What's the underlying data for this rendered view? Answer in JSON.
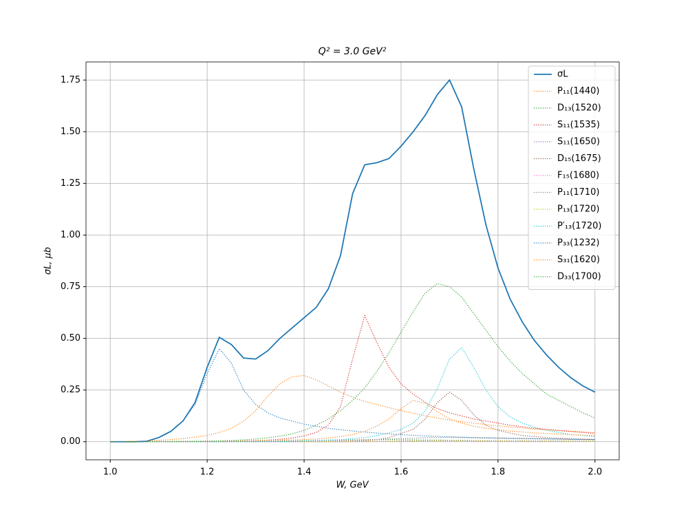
{
  "chart_data": {
    "type": "line",
    "title": "Q² = 3.0 GeV²",
    "x_label": "W, GeV",
    "y_label": "σL, μb",
    "x": [
      1.0,
      1.025,
      1.05,
      1.075,
      1.1,
      1.125,
      1.15,
      1.175,
      1.2,
      1.225,
      1.25,
      1.275,
      1.3,
      1.325,
      1.35,
      1.375,
      1.4,
      1.425,
      1.45,
      1.475,
      1.5,
      1.525,
      1.55,
      1.575,
      1.6,
      1.625,
      1.65,
      1.675,
      1.7,
      1.725,
      1.75,
      1.775,
      1.8,
      1.825,
      1.85,
      1.875,
      1.9,
      1.925,
      1.95,
      1.975,
      2.0
    ],
    "series": [
      {
        "name": "σL",
        "color": "#1f77b4",
        "style": "solid",
        "values": [
          0,
          0,
          0,
          0.002,
          0.02,
          0.05,
          0.1,
          0.19,
          0.36,
          0.505,
          0.47,
          0.405,
          0.4,
          0.44,
          0.5,
          0.55,
          0.6,
          0.65,
          0.74,
          0.9,
          1.2,
          1.34,
          1.35,
          1.37,
          1.43,
          1.5,
          1.58,
          1.68,
          1.75,
          1.62,
          1.32,
          1.05,
          0.84,
          0.69,
          0.58,
          0.49,
          0.42,
          0.36,
          0.31,
          0.27,
          0.24
        ]
      },
      {
        "name": "P₁₁(1440)",
        "color": "#ff7f0e",
        "style": "dotted",
        "values": [
          0,
          0.001,
          0.002,
          0.004,
          0.007,
          0.01,
          0.015,
          0.022,
          0.03,
          0.045,
          0.065,
          0.1,
          0.15,
          0.22,
          0.28,
          0.315,
          0.32,
          0.3,
          0.27,
          0.24,
          0.215,
          0.195,
          0.18,
          0.165,
          0.15,
          0.138,
          0.125,
          0.115,
          0.105,
          0.097,
          0.09,
          0.083,
          0.077,
          0.071,
          0.066,
          0.061,
          0.057,
          0.053,
          0.05,
          0.047,
          0.044
        ]
      },
      {
        "name": "D₁₃(1520)",
        "color": "#2ca02c",
        "style": "dotted",
        "values": [
          0,
          0,
          0,
          0,
          0,
          0,
          0,
          0,
          0.001,
          0.001,
          0.001,
          0.002,
          0.002,
          0.003,
          0.003,
          0.004,
          0.005,
          0.006,
          0.007,
          0.008,
          0.009,
          0.01,
          0.01,
          0.01,
          0.009,
          0.009,
          0.008,
          0.008,
          0.007,
          0.007,
          0.006,
          0.006,
          0.005,
          0.005,
          0.005,
          0.004,
          0.004,
          0.004,
          0.003,
          0.003,
          0.003
        ]
      },
      {
        "name": "S₁₁(1535)",
        "color": "#d62728",
        "style": "dotted",
        "values": [
          0,
          0,
          0,
          0,
          0.001,
          0.001,
          0.001,
          0.002,
          0.002,
          0.002,
          0.003,
          0.004,
          0.005,
          0.008,
          0.012,
          0.018,
          0.028,
          0.045,
          0.08,
          0.17,
          0.4,
          0.61,
          0.48,
          0.36,
          0.28,
          0.23,
          0.19,
          0.16,
          0.14,
          0.125,
          0.11,
          0.1,
          0.09,
          0.08,
          0.072,
          0.065,
          0.06,
          0.055,
          0.05,
          0.045,
          0.04
        ]
      },
      {
        "name": "S₁₁(1650)",
        "color": "#9467bd",
        "style": "dotted",
        "values": [
          0,
          0,
          0,
          0,
          0,
          0,
          0,
          0,
          0,
          0,
          0,
          0,
          0,
          0,
          0,
          0,
          0,
          0,
          0,
          0,
          0.001,
          0.001,
          0.002,
          0.002,
          0.003,
          0.004,
          0.004,
          0.005,
          0.005,
          0.005,
          0.004,
          0.004,
          0.003,
          0.003,
          0.003,
          0.002,
          0.002,
          0.002,
          0.002,
          0.001,
          0.001
        ]
      },
      {
        "name": "D₁₅(1675)",
        "color": "#8c564b",
        "style": "dotted",
        "values": [
          0,
          0,
          0,
          0,
          0,
          0,
          0,
          0,
          0,
          0,
          0,
          0,
          0,
          0,
          0,
          0,
          0,
          0,
          0.001,
          0.002,
          0.003,
          0.005,
          0.01,
          0.02,
          0.04,
          0.06,
          0.11,
          0.19,
          0.24,
          0.2,
          0.13,
          0.08,
          0.055,
          0.042,
          0.03,
          0.025,
          0.02,
          0.017,
          0.014,
          0.012,
          0.01
        ]
      },
      {
        "name": "F₁₅(1680)",
        "color": "#e377c2",
        "style": "dotted",
        "values": [
          0,
          0,
          0,
          0,
          0,
          0,
          0,
          0,
          0,
          0,
          0,
          0,
          0,
          0,
          0,
          0,
          0,
          0,
          0,
          0,
          0,
          0,
          0.001,
          0.001,
          0.002,
          0.002,
          0.003,
          0.003,
          0.003,
          0.003,
          0.002,
          0.002,
          0.002,
          0.002,
          0.001,
          0.001,
          0.001,
          0.001,
          0.001,
          0.001,
          0.001
        ]
      },
      {
        "name": "P₁₁(1710)",
        "color": "#7f7f7f",
        "style": "dotted",
        "values": [
          0,
          0,
          0,
          0,
          0,
          0,
          0,
          0,
          0,
          0,
          0.001,
          0.001,
          0.002,
          0.002,
          0.003,
          0.003,
          0.004,
          0.005,
          0.006,
          0.007,
          0.008,
          0.009,
          0.011,
          0.013,
          0.015,
          0.017,
          0.019,
          0.02,
          0.021,
          0.02,
          0.019,
          0.018,
          0.017,
          0.016,
          0.015,
          0.014,
          0.013,
          0.012,
          0.011,
          0.01,
          0.01
        ]
      },
      {
        "name": "P₁₃(1720)",
        "color": "#bcbd22",
        "style": "dotted",
        "values": [
          0,
          0,
          0,
          0,
          0,
          0,
          0,
          0,
          0,
          0,
          0,
          0,
          0,
          0,
          0,
          0,
          0,
          0,
          0,
          0,
          0.001,
          0.001,
          0.002,
          0.002,
          0.003,
          0.003,
          0.004,
          0.004,
          0.005,
          0.005,
          0.005,
          0.004,
          0.004,
          0.004,
          0.003,
          0.003,
          0.003,
          0.003,
          0.002,
          0.002,
          0.002
        ]
      },
      {
        "name": "P′₁₃(1720)",
        "color": "#17becf",
        "style": "dotted",
        "values": [
          0,
          0,
          0,
          0,
          0,
          0,
          0,
          0,
          0,
          0,
          0,
          0,
          0,
          0,
          0,
          0,
          0.005,
          0.006,
          0.008,
          0.01,
          0.015,
          0.02,
          0.03,
          0.042,
          0.06,
          0.09,
          0.15,
          0.26,
          0.4,
          0.455,
          0.36,
          0.25,
          0.17,
          0.12,
          0.09,
          0.07,
          0.055,
          0.045,
          0.035,
          0.03,
          0.025
        ]
      },
      {
        "name": "P₃₃(1232)",
        "color": "#1f77b4",
        "style": "dotted",
        "values": [
          0,
          0,
          0,
          0.002,
          0.02,
          0.05,
          0.1,
          0.18,
          0.33,
          0.45,
          0.38,
          0.25,
          0.18,
          0.14,
          0.115,
          0.1,
          0.085,
          0.075,
          0.065,
          0.058,
          0.052,
          0.047,
          0.042,
          0.038,
          0.034,
          0.031,
          0.028,
          0.026,
          0.024,
          0.022,
          0.02,
          0.019,
          0.018,
          0.017,
          0.016,
          0.015,
          0.014,
          0.013,
          0.012,
          0.012,
          0.011
        ]
      },
      {
        "name": "S₃₁(1620)",
        "color": "#ff7f0e",
        "style": "dotted",
        "values": [
          0,
          0,
          0,
          0,
          0.001,
          0.001,
          0.002,
          0.002,
          0.003,
          0.003,
          0.004,
          0.005,
          0.006,
          0.007,
          0.008,
          0.009,
          0.01,
          0.013,
          0.018,
          0.025,
          0.035,
          0.05,
          0.075,
          0.11,
          0.16,
          0.2,
          0.185,
          0.145,
          0.11,
          0.09,
          0.075,
          0.065,
          0.058,
          0.052,
          0.047,
          0.043,
          0.04,
          0.037,
          0.034,
          0.032,
          0.03
        ]
      },
      {
        "name": "D₃₃(1700)",
        "color": "#2ca02c",
        "style": "dotted",
        "values": [
          0,
          0,
          0,
          0,
          0.001,
          0.001,
          0.002,
          0.002,
          0.003,
          0.004,
          0.006,
          0.009,
          0.013,
          0.019,
          0.027,
          0.038,
          0.055,
          0.08,
          0.11,
          0.15,
          0.2,
          0.26,
          0.34,
          0.43,
          0.53,
          0.63,
          0.72,
          0.765,
          0.75,
          0.7,
          0.62,
          0.54,
          0.46,
          0.39,
          0.33,
          0.28,
          0.23,
          0.2,
          0.17,
          0.14,
          0.115
        ]
      }
    ],
    "xlim": [
      0.95,
      2.05
    ],
    "ylim": [
      -0.0875,
      1.8375
    ],
    "xticks": [
      {
        "value": 1,
        "label": "1.0"
      },
      1.2,
      1.4,
      1.6,
      1.8,
      {
        "value": 2,
        "label": "2.0"
      }
    ],
    "yticks": [
      {
        "value": 0,
        "label": "0.00"
      },
      0.25,
      {
        "value": 0.5,
        "label": "0.50"
      },
      {
        "value": 0.75,
        "label": "0.75"
      },
      {
        "value": 1,
        "label": "1.00"
      },
      1.25,
      {
        "value": 1.5,
        "label": "1.50"
      },
      1.75
    ],
    "grid": true,
    "legend": "upper right"
  }
}
